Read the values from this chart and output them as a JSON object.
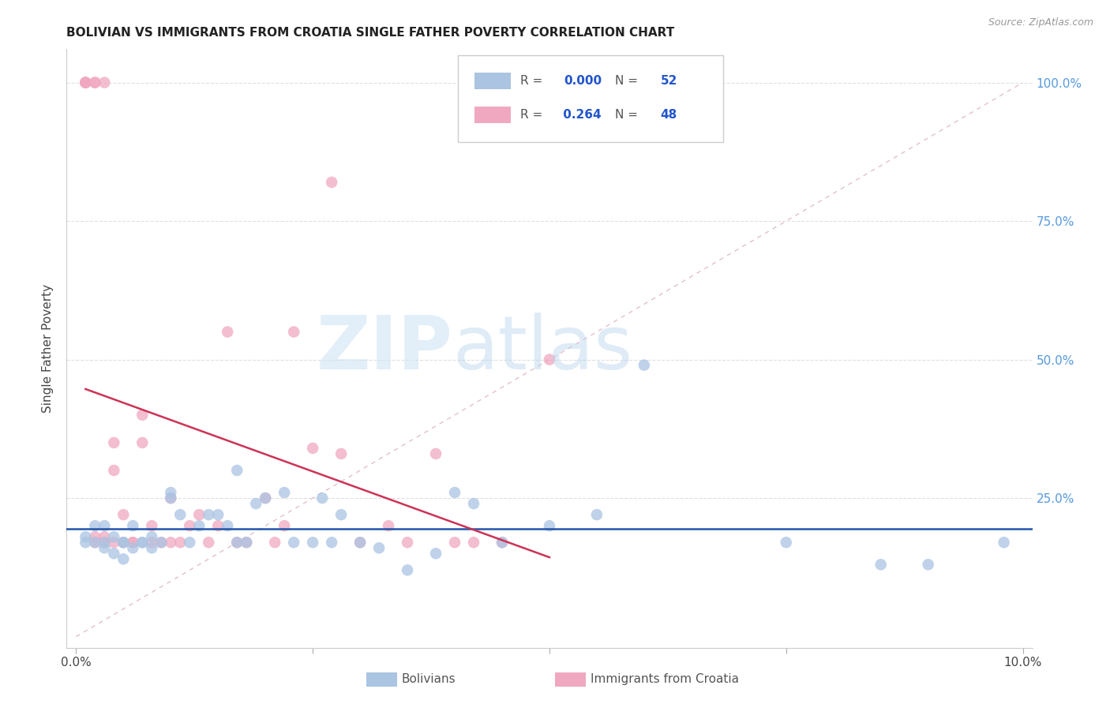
{
  "title": "BOLIVIAN VS IMMIGRANTS FROM CROATIA SINGLE FATHER POVERTY CORRELATION CHART",
  "source": "Source: ZipAtlas.com",
  "ylabel": "Single Father Poverty",
  "legend_blue_r": "0.000",
  "legend_blue_n": "52",
  "legend_pink_r": "0.264",
  "legend_pink_n": "48",
  "blue_color": "#aac4e2",
  "pink_color": "#f0a8c0",
  "blue_line_color": "#2255aa",
  "pink_line_color": "#cc3355",
  "diag_line_color": "#e0b8c8",
  "grid_color": "#e0e0e0",
  "blue_scatter_x": [
    0.001,
    0.001,
    0.002,
    0.002,
    0.003,
    0.003,
    0.003,
    0.004,
    0.004,
    0.005,
    0.005,
    0.005,
    0.006,
    0.006,
    0.007,
    0.007,
    0.008,
    0.008,
    0.009,
    0.01,
    0.01,
    0.011,
    0.012,
    0.013,
    0.014,
    0.015,
    0.016,
    0.017,
    0.017,
    0.018,
    0.019,
    0.02,
    0.022,
    0.023,
    0.025,
    0.026,
    0.027,
    0.028,
    0.03,
    0.032,
    0.035,
    0.038,
    0.04,
    0.042,
    0.045,
    0.05,
    0.055,
    0.06,
    0.075,
    0.085,
    0.09,
    0.098
  ],
  "blue_scatter_y": [
    0.17,
    0.18,
    0.17,
    0.2,
    0.16,
    0.17,
    0.2,
    0.15,
    0.18,
    0.17,
    0.17,
    0.14,
    0.16,
    0.2,
    0.17,
    0.17,
    0.16,
    0.18,
    0.17,
    0.25,
    0.26,
    0.22,
    0.17,
    0.2,
    0.22,
    0.22,
    0.2,
    0.3,
    0.17,
    0.17,
    0.24,
    0.25,
    0.26,
    0.17,
    0.17,
    0.25,
    0.17,
    0.22,
    0.17,
    0.16,
    0.12,
    0.15,
    0.26,
    0.24,
    0.17,
    0.2,
    0.22,
    0.49,
    0.17,
    0.13,
    0.13,
    0.17
  ],
  "pink_scatter_x": [
    0.001,
    0.001,
    0.001,
    0.001,
    0.002,
    0.002,
    0.002,
    0.002,
    0.003,
    0.003,
    0.003,
    0.004,
    0.004,
    0.004,
    0.005,
    0.005,
    0.006,
    0.006,
    0.007,
    0.007,
    0.008,
    0.008,
    0.009,
    0.01,
    0.01,
    0.011,
    0.012,
    0.013,
    0.014,
    0.015,
    0.016,
    0.017,
    0.018,
    0.02,
    0.021,
    0.022,
    0.023,
    0.025,
    0.027,
    0.028,
    0.03,
    0.033,
    0.035,
    0.038,
    0.04,
    0.042,
    0.045,
    0.05
  ],
  "pink_scatter_y": [
    1.0,
    1.0,
    1.0,
    1.0,
    1.0,
    1.0,
    0.17,
    0.18,
    1.0,
    0.17,
    0.18,
    0.35,
    0.3,
    0.17,
    0.17,
    0.22,
    0.17,
    0.17,
    0.35,
    0.4,
    0.17,
    0.2,
    0.17,
    0.25,
    0.17,
    0.17,
    0.2,
    0.22,
    0.17,
    0.2,
    0.55,
    0.17,
    0.17,
    0.25,
    0.17,
    0.2,
    0.55,
    0.34,
    0.82,
    0.33,
    0.17,
    0.2,
    0.17,
    0.33,
    0.17,
    0.17,
    0.17,
    0.5
  ],
  "blue_line_y": 0.195,
  "xlim": [
    0.0,
    0.1
  ],
  "ylim": [
    0.0,
    1.0
  ]
}
